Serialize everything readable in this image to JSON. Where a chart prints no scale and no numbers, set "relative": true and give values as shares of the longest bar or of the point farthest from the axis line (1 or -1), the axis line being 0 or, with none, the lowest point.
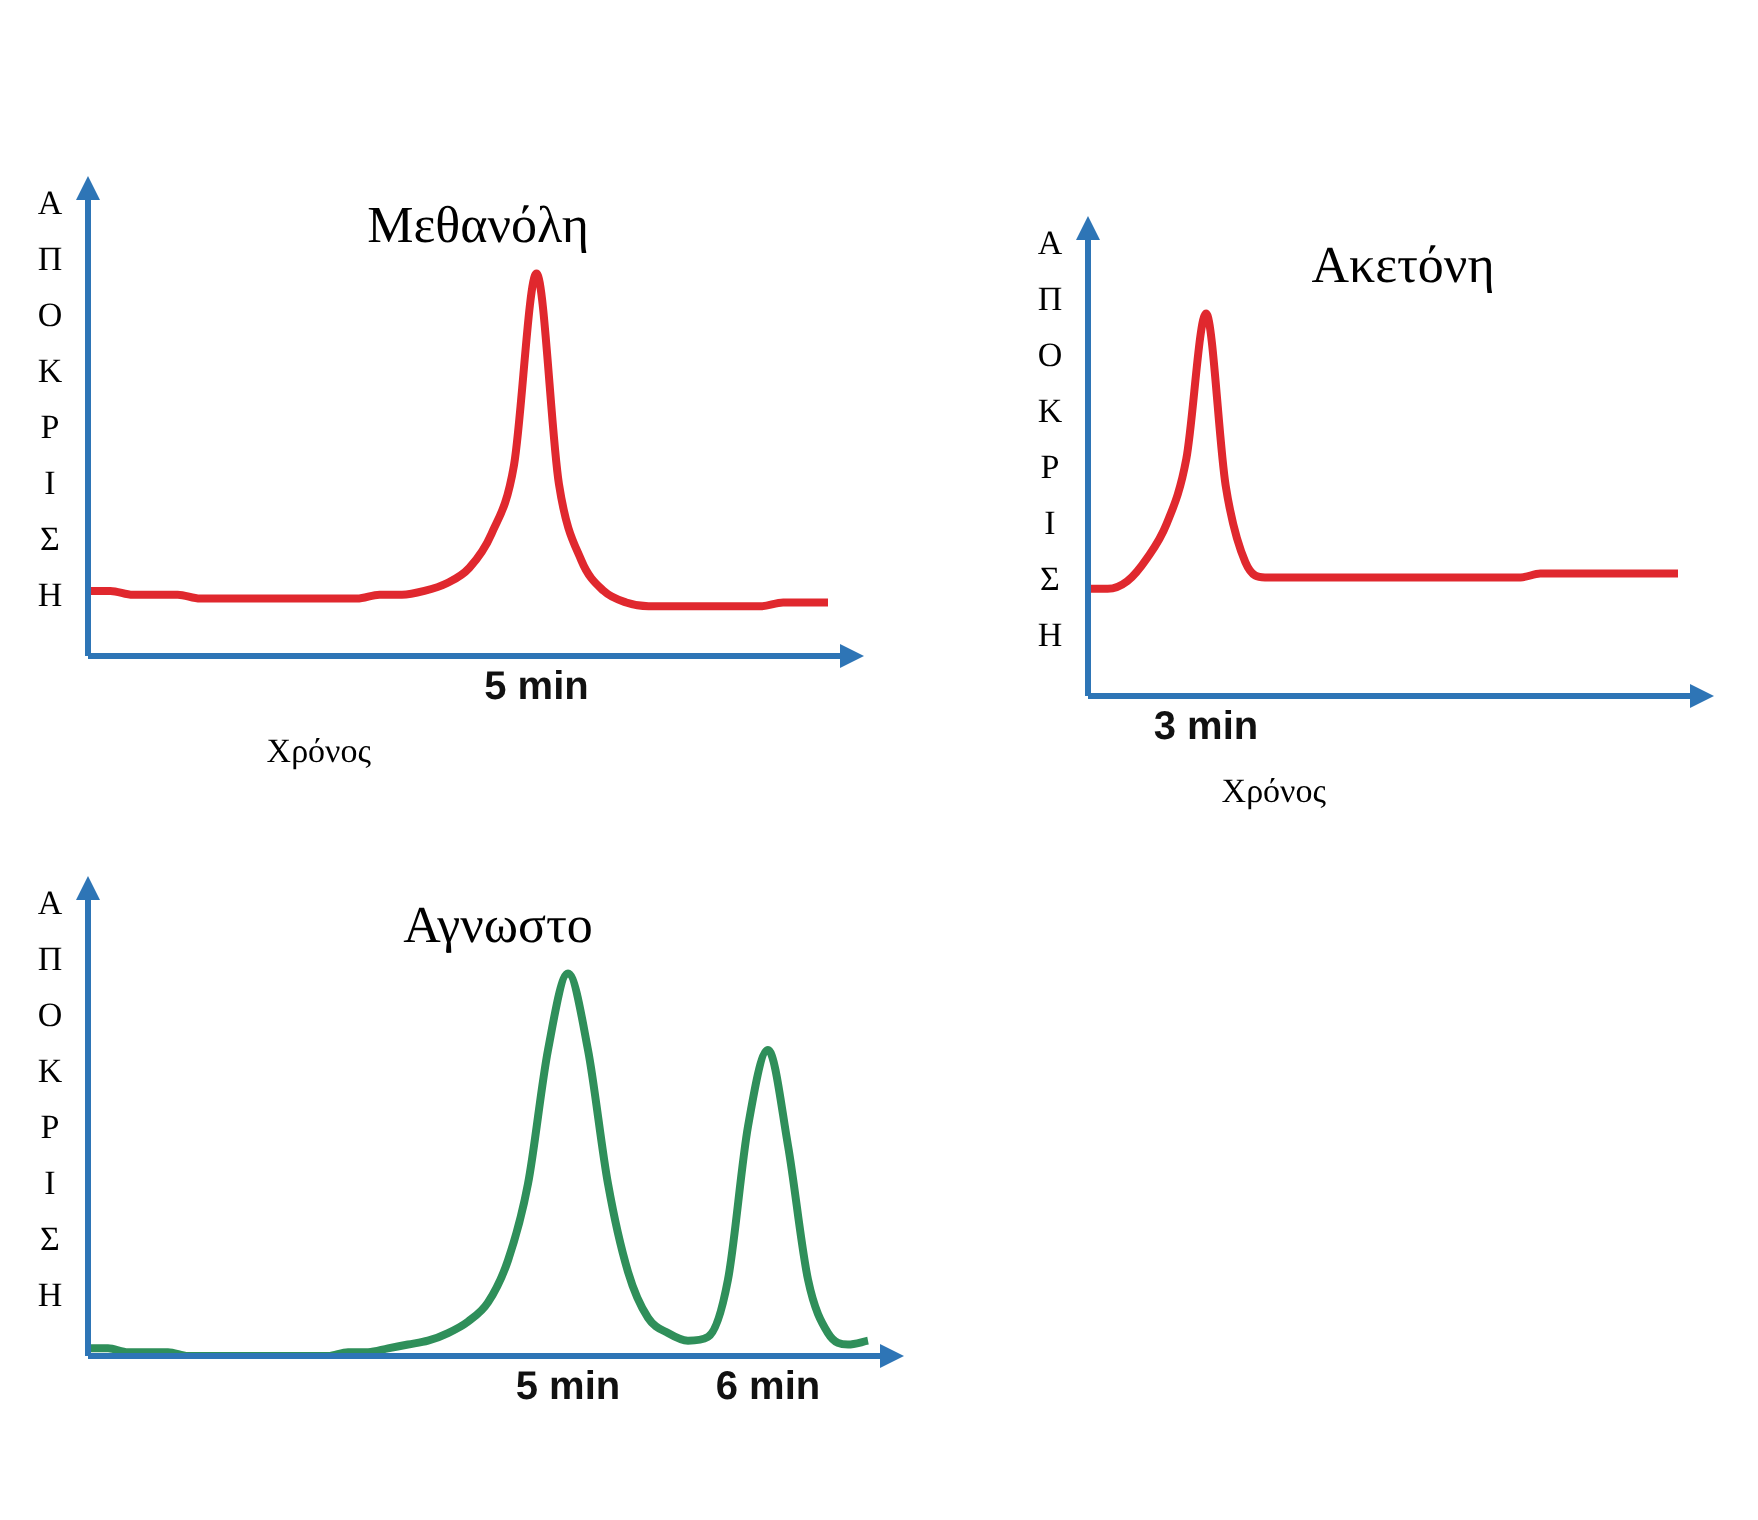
{
  "chart_data": [
    {
      "type": "line",
      "title": "Μεθανόλη",
      "ylabel": "ΑΠΟΚΡΙΣΗ",
      "xlabel": "Χρόνος",
      "relative": true,
      "marker": "none",
      "annotations": [
        "5 min"
      ],
      "categories": [
        null,
        null,
        null,
        null,
        null,
        null,
        null,
        null,
        null,
        null,
        null,
        null,
        null,
        null,
        null,
        null,
        null,
        null,
        null,
        null,
        null,
        null,
        null,
        null,
        null,
        null,
        null,
        null,
        null,
        null,
        null,
        null,
        null,
        null
      ],
      "series": [
        {
          "color": "#e0282e",
          "values": [
            0.17,
            0.17,
            0.16,
            0.16,
            0.16,
            0.15,
            0.15,
            0.15,
            0.15,
            0.15,
            0.15,
            0.15,
            0.15,
            0.16,
            0.16,
            0.17,
            0.19,
            0.23,
            0.32,
            0.5,
            1.0,
            0.45,
            0.25,
            0.17,
            0.14,
            0.13,
            0.13,
            0.13,
            0.13,
            0.13,
            0.13,
            0.14,
            0.14,
            0.14
          ]
        }
      ]
    },
    {
      "type": "line",
      "title": "Ακετόνη",
      "ylabel": "ΑΠΟΚΡΙΣΗ",
      "xlabel": "Χρόνος",
      "relative": true,
      "marker": "none",
      "annotations": [
        "3 min"
      ],
      "categories": [
        null,
        null,
        null,
        null,
        null,
        null,
        null,
        null,
        null,
        null,
        null,
        null,
        null,
        null,
        null,
        null,
        null,
        null,
        null,
        null,
        null,
        null,
        null,
        null,
        null,
        null,
        null,
        null,
        null,
        null,
        null
      ],
      "series": [
        {
          "color": "#e0282e",
          "values": [
            0.28,
            0.28,
            0.3,
            0.36,
            0.45,
            0.62,
            1.0,
            0.55,
            0.35,
            0.31,
            0.31,
            0.31,
            0.31,
            0.31,
            0.31,
            0.31,
            0.31,
            0.31,
            0.31,
            0.31,
            0.31,
            0.31,
            0.31,
            0.32,
            0.32,
            0.32,
            0.32,
            0.32,
            0.32,
            0.32,
            0.32
          ]
        }
      ]
    },
    {
      "type": "line",
      "title": "Αγνωστο",
      "ylabel": "ΑΠΟΚΡΙΣΗ",
      "relative": true,
      "marker": "none",
      "annotations": [
        "5 min",
        "6 min"
      ],
      "categories": [
        null,
        null,
        null,
        null,
        null,
        null,
        null,
        null,
        null,
        null,
        null,
        null,
        null,
        null,
        null,
        null,
        null,
        null,
        null,
        null,
        null,
        null,
        null,
        null,
        null,
        null,
        null,
        null,
        null,
        null,
        null,
        null,
        null,
        null,
        null,
        null,
        null,
        null,
        null,
        null
      ],
      "series": [
        {
          "color": "#2f8f5a",
          "values": [
            0.02,
            0.02,
            0.01,
            0.01,
            0.01,
            0,
            0,
            0,
            0,
            0,
            0,
            0,
            0,
            0.01,
            0.01,
            0.02,
            0.03,
            0.04,
            0.06,
            0.09,
            0.14,
            0.25,
            0.45,
            0.8,
            1.0,
            0.8,
            0.45,
            0.22,
            0.1,
            0.06,
            0.04,
            0.05,
            0.2,
            0.6,
            0.8,
            0.55,
            0.2,
            0.06,
            0.03,
            0.04
          ]
        }
      ]
    }
  ]
}
